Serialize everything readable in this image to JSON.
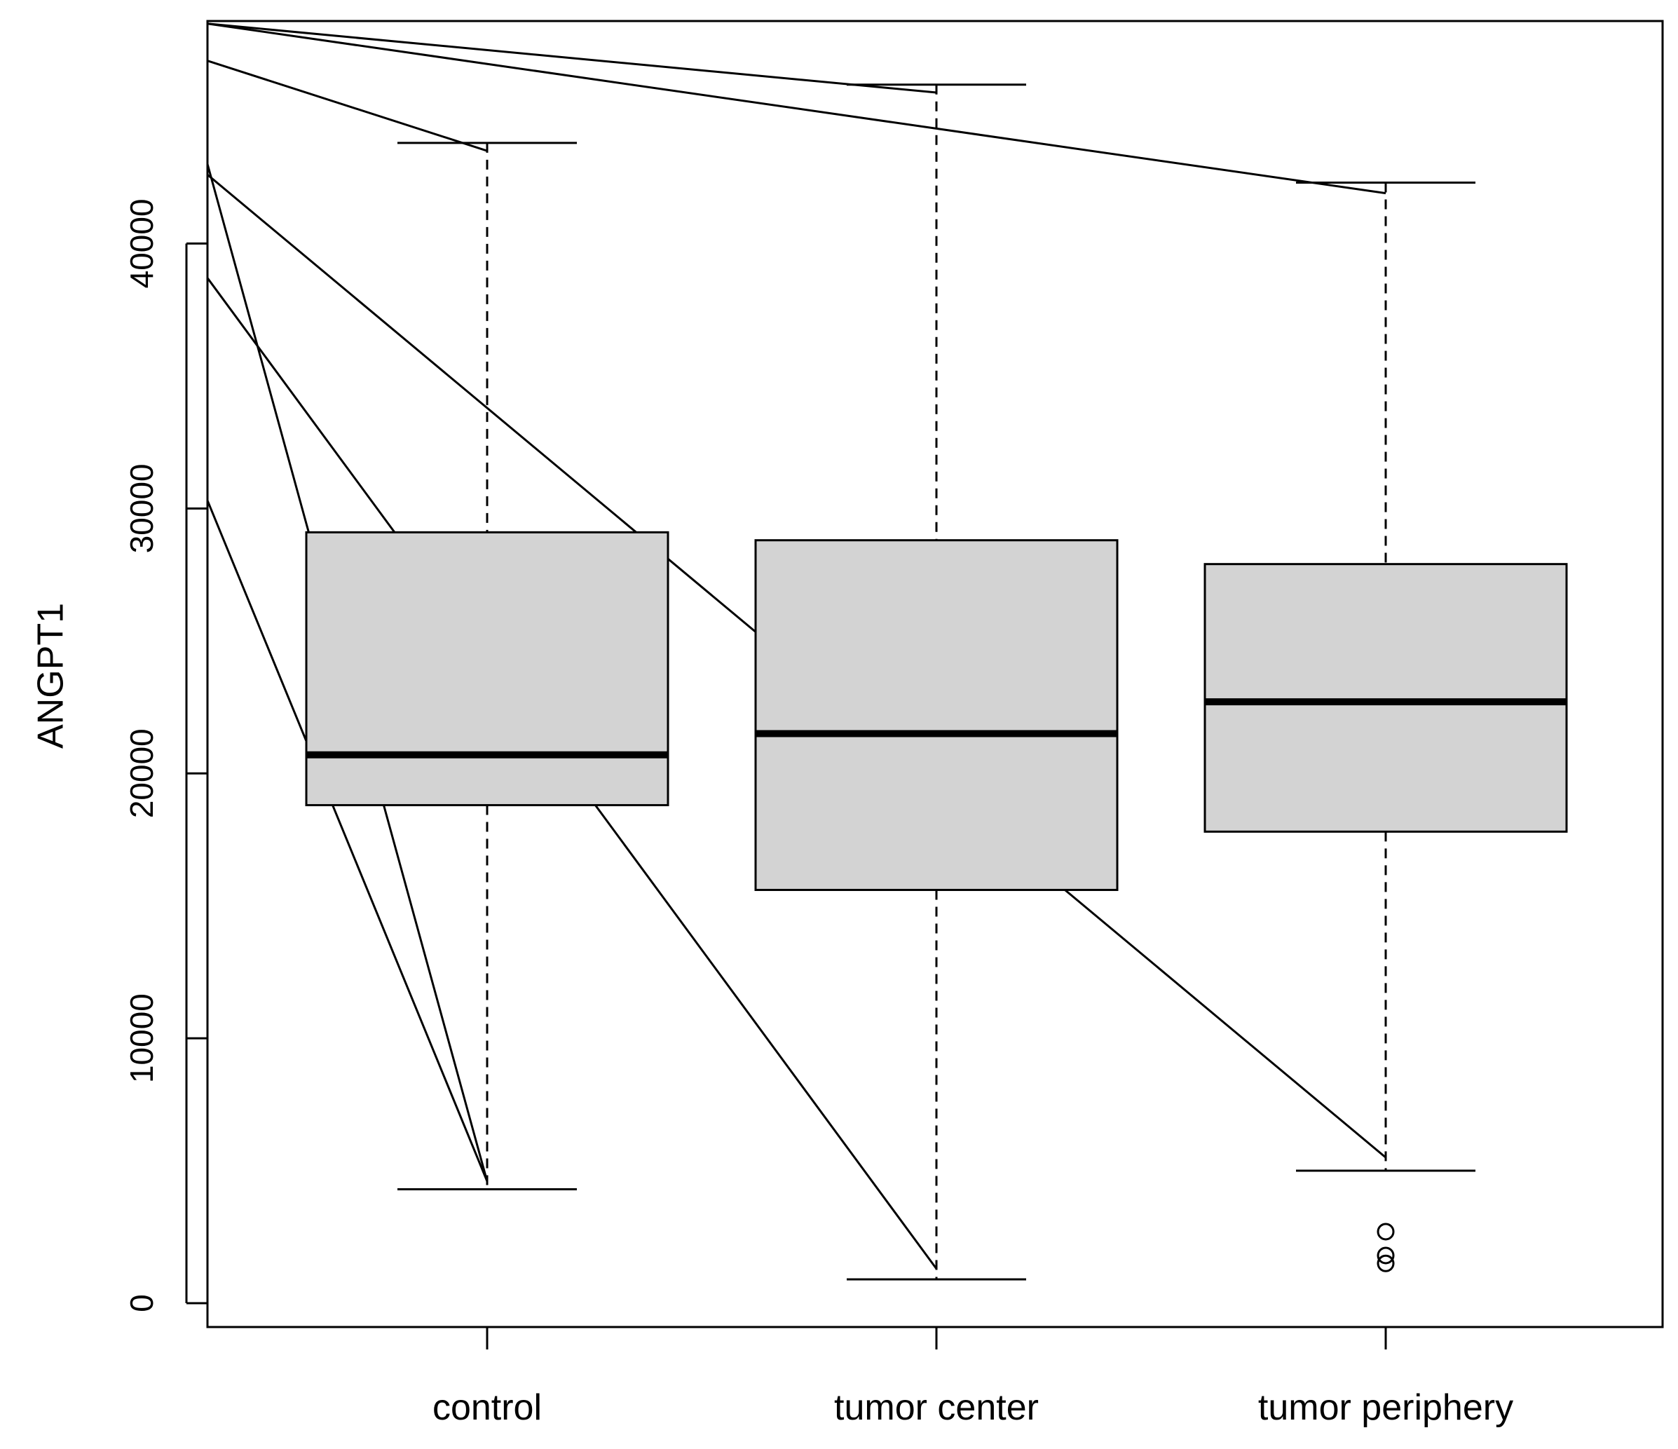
{
  "chart_data": {
    "type": "boxplot",
    "ylabel": "ANGPT1",
    "xlabel": "",
    "title": "",
    "ylim": [
      -900,
      48400
    ],
    "yticks": [
      0,
      10000,
      20000,
      30000,
      40000
    ],
    "ytick_labels": [
      "0",
      "10000",
      "20000",
      "30000",
      "40000"
    ],
    "categories": [
      "control",
      "tumor center",
      "tumor periphery"
    ],
    "boxes": [
      {
        "category": "control",
        "whisker_low": 4300,
        "q1": 18800,
        "median": 20700,
        "q3": 29100,
        "whisker_high": 43800,
        "outliers": []
      },
      {
        "category": "tumor center",
        "whisker_low": 900,
        "q1": 15600,
        "median": 21500,
        "q3": 28800,
        "whisker_high": 46000,
        "outliers": []
      },
      {
        "category": "tumor periphery",
        "whisker_low": 5000,
        "q1": 17800,
        "median": 22700,
        "q3": 27900,
        "whisker_high": 42300,
        "outliers": [
          2700,
          1800,
          1500
        ]
      }
    ],
    "lines": [
      {
        "from": {
          "x": 0,
          "y": 43000
        },
        "to": {
          "x": 1,
          "y": 4600
        }
      },
      {
        "from": {
          "x": 0,
          "y": 38700
        },
        "to": {
          "x": 2,
          "y": 1300
        }
      },
      {
        "from": {
          "x": 0,
          "y": 30300
        },
        "to": {
          "x": 1,
          "y": 4600
        }
      },
      {
        "from": {
          "x": 0,
          "y": 46900
        },
        "to": {
          "x": 1,
          "y": 43500
        }
      },
      {
        "from": {
          "x": 0,
          "y": 48300
        },
        "to": {
          "x": 2,
          "y": 45700
        }
      },
      {
        "from": {
          "x": 0,
          "y": 48300
        },
        "to": {
          "x": 3,
          "y": 41900
        }
      },
      {
        "from": {
          "x": 0,
          "y": 42600
        },
        "to": {
          "x": 3,
          "y": 5500
        }
      }
    ],
    "colors": {
      "box_fill": "#d3d3d3",
      "stroke": "#000000",
      "background": "#ffffff"
    },
    "grid": false,
    "legend": "none"
  }
}
